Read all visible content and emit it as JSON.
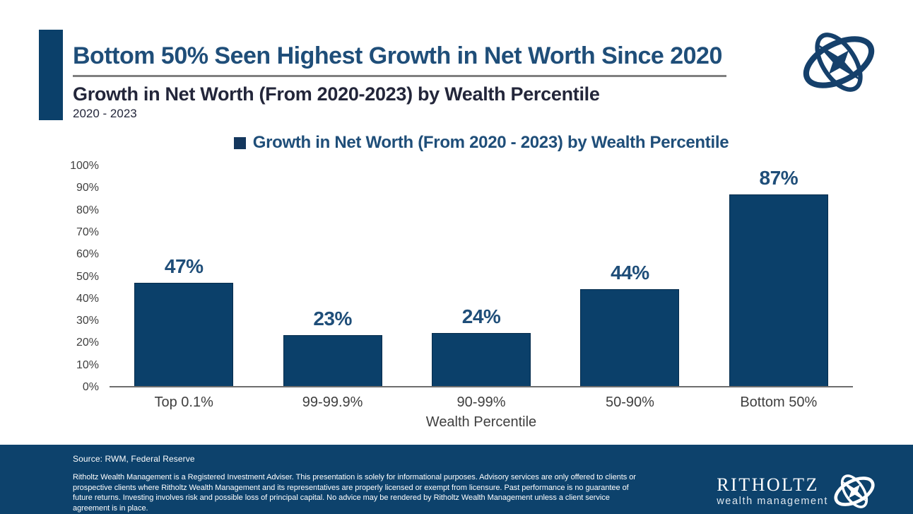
{
  "header": {
    "title": "Bottom 50% Seen Highest Growth in Net Worth Since 2020",
    "subtitle": "Growth in Net Worth (From 2020-2023) by Wealth Percentile",
    "period": "2020 - 2023"
  },
  "chart_data": {
    "type": "bar",
    "title": "Growth in Net Worth (From 2020 - 2023) by Wealth Percentile",
    "categories": [
      "Top 0.1%",
      "99-99.9%",
      "90-99%",
      "50-90%",
      "Bottom 50%"
    ],
    "values": [
      47,
      23,
      24,
      44,
      87
    ],
    "value_labels": [
      "47%",
      "23%",
      "24%",
      "44%",
      "87%"
    ],
    "xlabel": "Wealth Percentile",
    "ylabel": "",
    "ylim": [
      0,
      100
    ],
    "ytick_step": 10,
    "ytick_suffix": "%",
    "grid": false,
    "legend_position": "top-center",
    "bar_color": "#0B406A",
    "label_color": "#1F4E79"
  },
  "footer": {
    "source": "Source: RWM, Federal Reserve",
    "disclaimer": "Ritholtz Wealth Management is a Registered Investment Adviser. This presentation is solely for informational purposes. Advisory services are only offered to clients or prospective clients where Ritholtz Wealth Management and its representatives are properly licensed or exempt from licensure. Past performance is no guarantee of future returns. Investing involves risk and possible loss of principal capital. No advice may be rendered by Ritholtz Wealth Management unless a client service agreement is in place.",
    "brand_name": "RITHOLTZ",
    "brand_subtitle": "wealth management"
  },
  "colors": {
    "bar_navy": "#0B406A",
    "title_blue": "#1F4E79",
    "subtitle_dark": "#23263A",
    "footer_bg": "#0D426C",
    "axis_text": "#404040",
    "underline_gray": "#7F7F7F",
    "legend_marker": "#14375D"
  }
}
